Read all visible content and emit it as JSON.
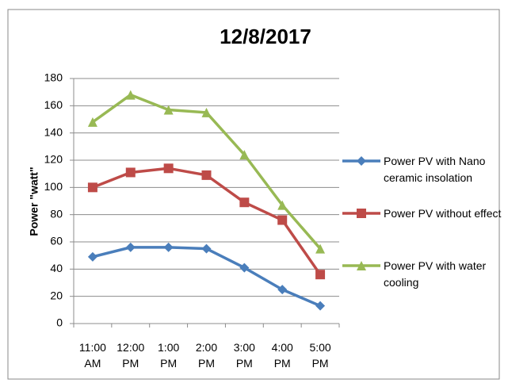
{
  "chart_data": {
    "type": "line",
    "title": "12/8/2017",
    "y_label": "Power \"watt\"",
    "categories": [
      "11:00 AM",
      "12:00 PM",
      "1:00 PM",
      "2:00 PM",
      "3:00 PM",
      "4:00 PM",
      "5:00 PM"
    ],
    "series": [
      {
        "name": "Power PV with Nano ceramic insolation",
        "color": "#4a7ebb",
        "marker": "diamond",
        "values": [
          49,
          56,
          56,
          55,
          41,
          25,
          13
        ]
      },
      {
        "name": "Power PV without effect",
        "color": "#be4b48",
        "marker": "square",
        "values": [
          100,
          111,
          114,
          109,
          89,
          76,
          36
        ]
      },
      {
        "name": "Power PV with water cooling",
        "color": "#98b954",
        "marker": "triangle",
        "values": [
          148,
          168,
          157,
          155,
          124,
          87,
          55
        ]
      }
    ],
    "ylim": [
      0,
      180
    ],
    "yticks": [
      0,
      20,
      40,
      60,
      80,
      100,
      120,
      140,
      160,
      180
    ],
    "grid": true,
    "legend": "right"
  }
}
